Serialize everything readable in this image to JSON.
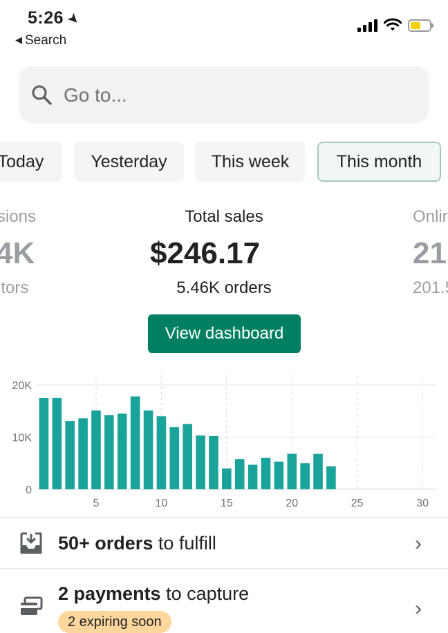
{
  "status_bar": {
    "time": "5:26",
    "back_label": "Search"
  },
  "search": {
    "placeholder": "Go to..."
  },
  "periods": [
    "Today",
    "Yesterday",
    "This week",
    "This month"
  ],
  "selected_period": "This month",
  "metrics": {
    "left": {
      "label": "sions",
      "value": "4K",
      "sub": "itors"
    },
    "center": {
      "label": "Total sales",
      "value": "$246.17",
      "sub": "5.46K orders"
    },
    "right": {
      "label": "Onlir",
      "value": "21",
      "sub": "201.5"
    }
  },
  "view_dashboard_label": "View dashboard",
  "chart_data": {
    "type": "bar",
    "x": [
      1,
      2,
      3,
      4,
      5,
      6,
      7,
      8,
      9,
      10,
      11,
      12,
      13,
      14,
      15,
      16,
      17,
      18,
      19,
      20,
      21,
      22,
      23
    ],
    "values": [
      17500,
      17500,
      13100,
      13600,
      15100,
      14200,
      14500,
      17800,
      15100,
      14000,
      11900,
      12500,
      10300,
      10200,
      4000,
      5800,
      4700,
      6000,
      5300,
      6800,
      5000,
      6800,
      4400
    ],
    "x_ticks": [
      "5",
      "10",
      "15",
      "20",
      "25",
      "30"
    ],
    "y_ticks": [
      "0",
      "10K",
      "20K"
    ],
    "ylim": [
      0,
      20000
    ],
    "xlim": [
      0.5,
      31
    ],
    "bar_color": "#1aa39b",
    "grid": true
  },
  "tasks": [
    {
      "bold": "50+ orders",
      "rest": " to fulfill"
    },
    {
      "bold": "2 payments",
      "rest": " to capture",
      "badge": "2 expiring soon"
    }
  ],
  "colors": {
    "primary": "#008060",
    "bar": "#1aa39b",
    "badge": "#ffd79d"
  }
}
